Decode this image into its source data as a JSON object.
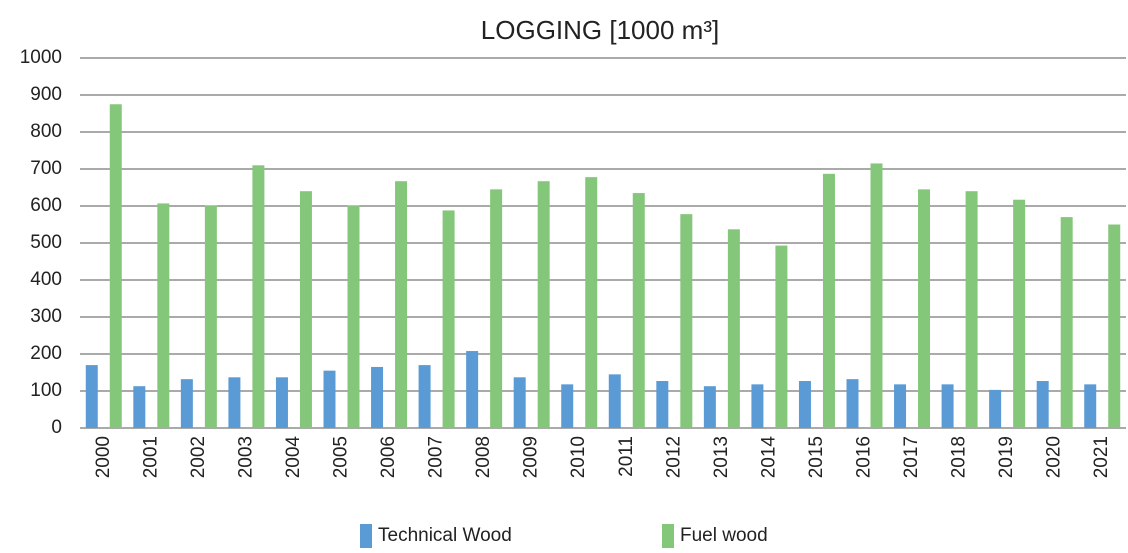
{
  "chart_data": {
    "type": "bar",
    "title": "LOGGING [1000 m³]",
    "categories": [
      "2000",
      "2001",
      "2002",
      "2003",
      "2004",
      "2005",
      "2006",
      "2007",
      "2008",
      "2009",
      "2010",
      "2011",
      "2012",
      "2013",
      "2014",
      "2015",
      "2016",
      "2017",
      "2018",
      "2019",
      "2020",
      "2021"
    ],
    "series": [
      {
        "name": "Technical Wood",
        "color": "#5b9bd5",
        "values": [
          170,
          113,
          132,
          137,
          137,
          155,
          165,
          170,
          208,
          137,
          118,
          145,
          127,
          113,
          118,
          127,
          132,
          118,
          118,
          103,
          127,
          118
        ]
      },
      {
        "name": "Fuel wood",
        "color": "#85c77a",
        "values": [
          875,
          607,
          602,
          710,
          640,
          602,
          667,
          588,
          645,
          667,
          678,
          635,
          578,
          537,
          493,
          687,
          715,
          645,
          640,
          617,
          570,
          550
        ]
      }
    ],
    "ylim": [
      0,
      1000
    ],
    "yticks": [
      0,
      100,
      200,
      300,
      400,
      500,
      600,
      700,
      800,
      900,
      1000
    ],
    "grid": true,
    "legend": "bottom"
  }
}
